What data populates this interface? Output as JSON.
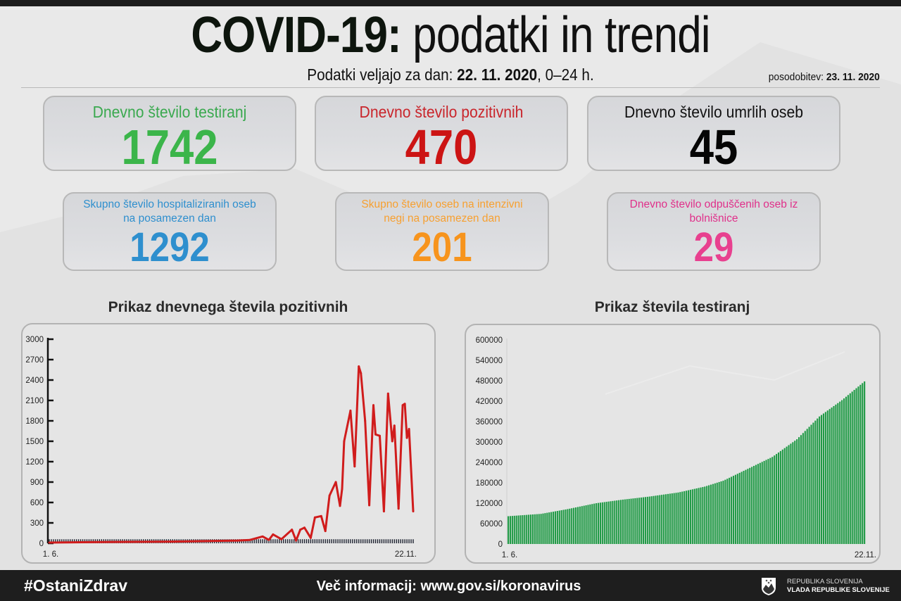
{
  "header": {
    "title_bold": "COVID-19:",
    "title_rest": "podatki in trendi",
    "subtitle_prefix": "Podatki veljajo za dan:",
    "subtitle_date": "22. 11. 2020",
    "subtitle_suffix": ", 0–24 h.",
    "updated_label": "posodobitev:",
    "updated_date": "23. 11. 2020"
  },
  "stats": [
    {
      "label": "Dnevno število testiranj",
      "value": "1742",
      "label_color": "#3aa94f",
      "value_color": "#3bb54a"
    },
    {
      "label": "Dnevno število pozitivnih",
      "value": "470",
      "label_color": "#c9252b",
      "value_color": "#cc1414"
    },
    {
      "label": "Dnevno število umrlih oseb",
      "value": "45",
      "label_color": "#111111",
      "value_color": "#050505"
    },
    {
      "label": "Skupno število hospitaliziranih oseb na posamezen dan",
      "value": "1292",
      "label_color": "#2e8fce",
      "value_color": "#2e8fce"
    },
    {
      "label": "Skupno število oseb na intenzivni negi na posamezen dan",
      "value": "201",
      "label_color": "#f7a030",
      "value_color": "#f7941d"
    },
    {
      "label": "Dnevno število odpuščenih oseb iz bolnišnice",
      "value": "29",
      "label_color": "#e0308a",
      "value_color": "#e8408f"
    }
  ],
  "chart_data": [
    {
      "type": "line",
      "title": "Prikaz dnevnega števila pozitivnih",
      "xlabel": "",
      "ylabel": "",
      "xlim": [
        "2020-06-01",
        "2020-11-22"
      ],
      "x_tick_labels": [
        "1. 6.",
        "22.11."
      ],
      "ylim": [
        0,
        3000
      ],
      "y_ticks": [
        0,
        300,
        600,
        900,
        1200,
        1500,
        1800,
        2100,
        2400,
        2700,
        3000
      ],
      "grid": false,
      "color": "#d01c1c",
      "series": [
        {
          "x": [
            "2020-06-01",
            "2020-07-01",
            "2020-07-31",
            "2020-08-30",
            "2020-09-05",
            "2020-09-11",
            "2020-09-14",
            "2020-09-16",
            "2020-09-20",
            "2020-09-25",
            "2020-09-27",
            "2020-09-29",
            "2020-10-01",
            "2020-10-04",
            "2020-10-06",
            "2020-10-09",
            "2020-10-11",
            "2020-10-13",
            "2020-10-16",
            "2020-10-18",
            "2020-10-19",
            "2020-10-20",
            "2020-10-21",
            "2020-10-23",
            "2020-10-25",
            "2020-10-27",
            "2020-10-28",
            "2020-10-30",
            "2020-11-01",
            "2020-11-03",
            "2020-11-04",
            "2020-11-06",
            "2020-11-08",
            "2020-11-10",
            "2020-11-12",
            "2020-11-13",
            "2020-11-15",
            "2020-11-17",
            "2020-11-18",
            "2020-11-19",
            "2020-11-20",
            "2020-11-22"
          ],
          "y": [
            10,
            20,
            25,
            40,
            50,
            100,
            50,
            130,
            60,
            200,
            40,
            200,
            230,
            80,
            380,
            400,
            180,
            700,
            900,
            550,
            800,
            1500,
            1650,
            1950,
            1130,
            2600,
            2500,
            1800,
            560,
            2030,
            1600,
            1580,
            470,
            2200,
            1500,
            1730,
            510,
            2030,
            2050,
            1550,
            1680,
            470
          ]
        }
      ]
    },
    {
      "type": "bar",
      "title": "Prikaz števila testiranj",
      "xlabel": "",
      "ylabel": "",
      "xlim": [
        "2020-06-01",
        "2020-11-22"
      ],
      "x_tick_labels": [
        "1. 6.",
        "22.11."
      ],
      "ylim": [
        0,
        600000
      ],
      "y_ticks": [
        0,
        60000,
        120000,
        180000,
        240000,
        300000,
        360000,
        420000,
        480000,
        540000,
        600000
      ],
      "grid": false,
      "color": "#1f9a45",
      "series": [
        {
          "x": [
            "2020-06-01",
            "2020-06-17",
            "2020-06-30",
            "2020-07-14",
            "2020-07-27",
            "2020-08-09",
            "2020-08-23",
            "2020-09-05",
            "2020-09-14",
            "2020-09-25",
            "2020-10-08",
            "2020-10-20",
            "2020-10-31",
            "2020-11-11",
            "2020-11-22"
          ],
          "y": [
            81700,
            88600,
            102600,
            120000,
            130500,
            139500,
            151400,
            168800,
            186000,
            218000,
            256000,
            308000,
            375000,
            423000,
            478000
          ]
        }
      ]
    }
  ],
  "footer": {
    "hashtag": "#OstaniZdrav",
    "more_label": "Več informacij:",
    "more_url": "www.gov.si/koronavirus",
    "gov_line1": "REPUBLIKA SLOVENIJA",
    "gov_line2": "VLADA REPUBLIKE SLOVENIJE"
  }
}
